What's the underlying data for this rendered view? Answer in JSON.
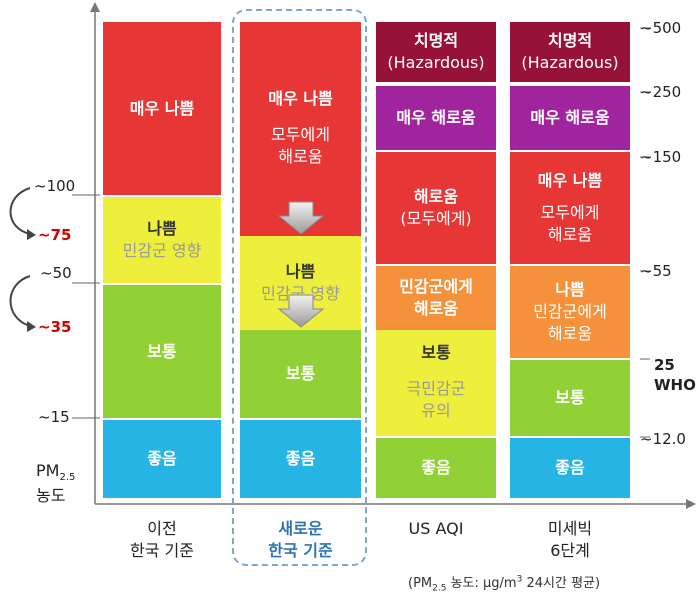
{
  "columns": {
    "prev": {
      "label_line1": "이전",
      "label_line2": "한국 기준"
    },
    "new": {
      "label_line1": "새로운",
      "label_line2": "한국 기준"
    },
    "us": {
      "label": "US AQI"
    },
    "pm6": {
      "label_line1": "미세빅",
      "label_line2": "6단계"
    }
  },
  "axis": {
    "title_pm": "PM",
    "title_sub": "2.5",
    "title_line2": "농도"
  },
  "left_ticks": {
    "t100": "~100",
    "t75": "~75",
    "t50": "~50",
    "t35": "~35",
    "t15": "~15"
  },
  "right_ticks": {
    "t500": "~500",
    "t250": "~250",
    "t150": "~150",
    "t55": "~55",
    "t25": "25",
    "who": "WHO",
    "t12": "~12.0"
  },
  "prev_blocks": {
    "very_bad": "매우 나쁨",
    "bad": "나쁨",
    "bad_sub": "민감군 영향",
    "normal": "보통",
    "good": "좋음"
  },
  "new_blocks": {
    "very_bad": "매우 나쁨",
    "very_bad_sub1": "모두에게",
    "very_bad_sub2": "해로움",
    "bad": "나쁨",
    "bad_sub": "민감군 영향",
    "normal": "보통",
    "good": "좋음"
  },
  "us_blocks": {
    "hazard": "치명적",
    "hazard_en": "(Hazardous)",
    "very_unhealthy": "매우 해로움",
    "unhealthy": "해로움",
    "unhealthy_sub": "(모두에게)",
    "sensitive1": "민감군에게",
    "sensitive2": "해로움",
    "moderate": "보통",
    "moderate_sub1": "극민감군",
    "moderate_sub2": "유의",
    "good": "좋음"
  },
  "pm6_blocks": {
    "hazard": "치명적",
    "hazard_en": "(Hazardous)",
    "very_unhealthy": "매우 해로움",
    "very_bad": "매우 나쁨",
    "very_bad_sub1": "모두에게",
    "very_bad_sub2": "해로움",
    "bad": "나쁨",
    "bad_sub1": "민감군에게",
    "bad_sub2": "해로움",
    "normal": "보통",
    "good": "좋음"
  },
  "footnote": {
    "pre": "(PM",
    "sub": "2.5",
    "mid": " 농도: μg/m",
    "sup": "3",
    "post": " 24시간 평균)"
  },
  "colors": {
    "red": "#e63636",
    "yellow": "#eeee3c",
    "green": "#92d135",
    "blue": "#25b4e3",
    "maroon": "#961237",
    "purple": "#a0249e",
    "orange": "#f5913a",
    "highlight_blue": "#2e74b5"
  }
}
